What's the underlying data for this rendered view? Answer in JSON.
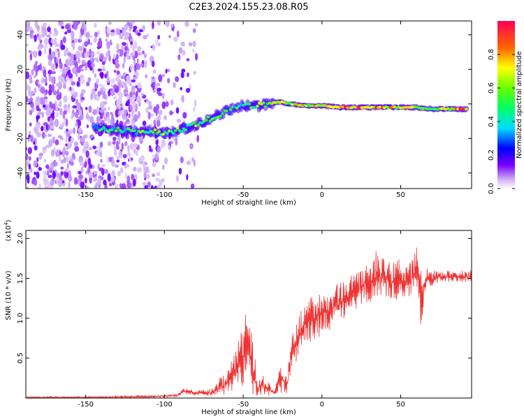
{
  "title": "C2E3.2024.155.23.08.R05",
  "chart_data": [
    {
      "type": "heatmap",
      "xlabel": "Height of straight line (km)",
      "ylabel": "Frequency (Hz)",
      "xlim": [
        -188,
        95
      ],
      "ylim": [
        -49,
        48
      ],
      "x_ticks": [
        -150,
        -100,
        -50,
        0,
        50
      ],
      "x_tick_labels": [
        "-150",
        "-100",
        "-50",
        "0",
        "50"
      ],
      "y_ticks": [
        -40,
        -20,
        0,
        20,
        40
      ],
      "y_tick_labels": [
        "-40",
        "-20",
        "0",
        "20",
        "40"
      ],
      "colorbar": {
        "label": "Normalized spectral amplitude",
        "range": [
          0,
          1
        ],
        "ticks": [
          0,
          0.2,
          0.4,
          0.6,
          0.8
        ],
        "tick_labels": [
          "0.0",
          "0.2",
          "0.4",
          "0.6",
          "0.8"
        ],
        "colormap": "rainbow"
      },
      "ridge": {
        "x": [
          -145,
          -130,
          -120,
          -110,
          -100,
          -90,
          -80,
          -70,
          -60,
          -50,
          -40,
          -30,
          -25,
          -20,
          -10,
          0,
          10,
          20,
          30,
          40,
          50,
          60,
          70,
          80,
          92
        ],
        "frequency": [
          -14,
          -15,
          -16,
          -16,
          -17,
          -15,
          -12,
          -8,
          -4,
          -1,
          -1,
          1,
          1,
          0,
          -1,
          -1,
          -2,
          -2,
          -2,
          -2,
          -2,
          -2,
          -3,
          -3,
          -3
        ],
        "amplitude": [
          0.5,
          0.55,
          0.55,
          0.6,
          0.6,
          0.65,
          0.6,
          0.55,
          0.5,
          0.55,
          0.6,
          0.7,
          0.75,
          0.7,
          0.75,
          0.8,
          0.9,
          0.9,
          0.9,
          0.85,
          0.75,
          0.7,
          0.65,
          0.8,
          0.9
        ]
      },
      "noise_region_x": [
        -188,
        -78
      ]
    },
    {
      "type": "line",
      "xlabel": "Height of straight line (km)",
      "ylabel": "SNR (10 * v/v)",
      "y_multiplier_label": "(x10",
      "y_multiplier_exp": "4",
      "y_multiplier_close": ")",
      "xlim": [
        -188,
        95
      ],
      "ylim": [
        0,
        2.1
      ],
      "x_ticks": [
        -150,
        -100,
        -50,
        0,
        50
      ],
      "x_tick_labels": [
        "-150",
        "-100",
        "-50",
        "0",
        "50"
      ],
      "y_ticks": [
        0.5,
        1.0,
        1.5,
        2.0
      ],
      "y_tick_labels": [
        "0.5",
        "1.0",
        "1.5",
        "2.0"
      ],
      "color": "#ee3333",
      "envelope": {
        "x": [
          -188,
          -150,
          -120,
          -100,
          -92,
          -88,
          -80,
          -70,
          -63,
          -58,
          -55,
          -50,
          -47,
          -44,
          -41,
          -38,
          -34,
          -30,
          -28,
          -26,
          -24,
          -22,
          -20,
          -17,
          -14,
          -10,
          -5,
          0,
          5,
          10,
          15,
          20,
          25,
          30,
          35,
          40,
          45,
          50,
          55,
          60,
          63,
          66,
          70,
          75,
          80,
          85,
          90,
          95
        ],
        "y": [
          0.02,
          0.02,
          0.03,
          0.04,
          0.05,
          0.12,
          0.1,
          0.12,
          0.3,
          0.45,
          0.6,
          1.0,
          1.1,
          0.75,
          0.25,
          0.3,
          0.2,
          0.12,
          0.35,
          0.45,
          0.4,
          0.3,
          0.8,
          1.0,
          1.1,
          1.2,
          1.3,
          1.35,
          1.4,
          1.45,
          1.5,
          1.55,
          1.65,
          1.75,
          1.9,
          1.75,
          1.7,
          1.75,
          1.7,
          1.9,
          1.75,
          1.65,
          1.6,
          1.6,
          1.6,
          1.6,
          1.6,
          1.6
        ],
        "floor": [
          0.0,
          0.0,
          0.0,
          0.01,
          0.02,
          0.05,
          0.03,
          0.02,
          0.02,
          0.02,
          0.05,
          0.05,
          0.1,
          0.03,
          0.02,
          0.02,
          0.02,
          0.02,
          0.05,
          0.05,
          0.05,
          0.05,
          0.25,
          0.4,
          0.55,
          0.7,
          0.7,
          0.8,
          0.85,
          0.9,
          1.0,
          1.1,
          1.15,
          1.2,
          1.2,
          1.25,
          1.2,
          1.25,
          1.2,
          1.3,
          0.85,
          1.35,
          1.4,
          1.45,
          1.45,
          1.45,
          1.45,
          1.45
        ]
      }
    }
  ]
}
